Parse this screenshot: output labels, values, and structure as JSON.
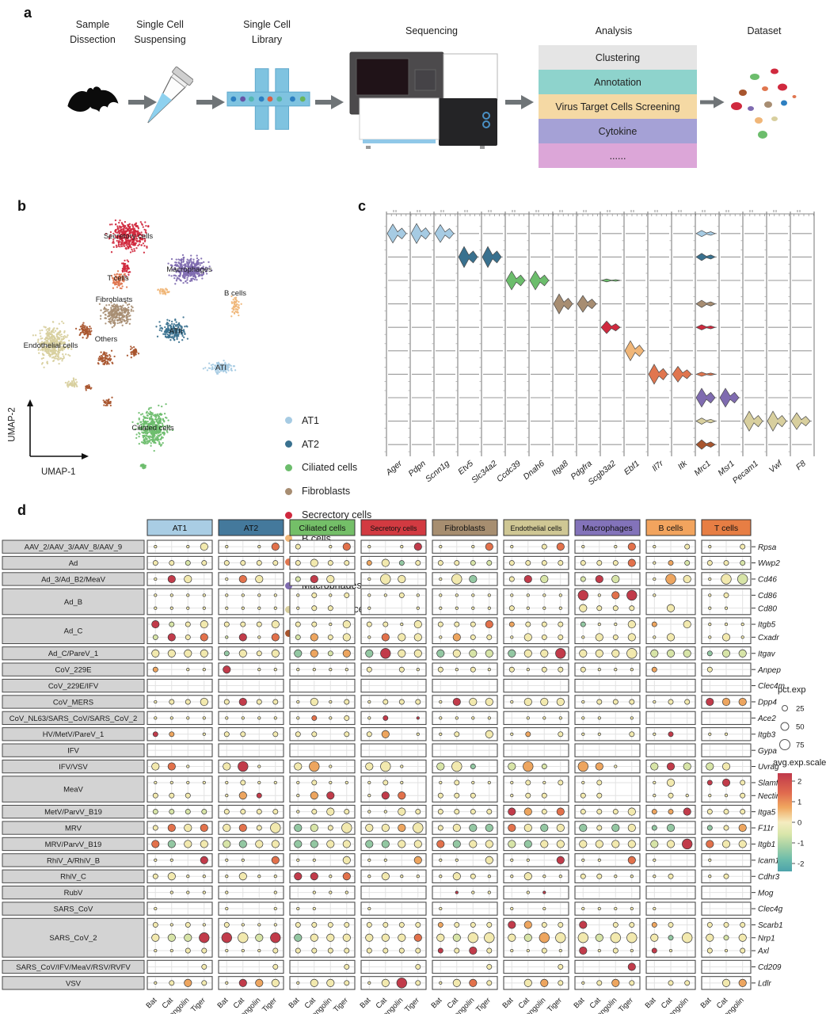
{
  "panel_a": {
    "label": "a",
    "steps": [
      {
        "title": "Sample\nDissection",
        "icon": "bat-icon"
      },
      {
        "title": "Single Cell\nSuspensing",
        "icon": "tube-icon"
      },
      {
        "title": "Single Cell\nLibrary",
        "icon": "chip-icon"
      },
      {
        "title": "Sequencing",
        "icon": "sequencer-icon"
      },
      {
        "title": "Analysis",
        "icon": "analysis-stack"
      },
      {
        "title": "Dataset",
        "icon": "dataset-umap-icon"
      }
    ],
    "analysis_items": [
      {
        "label": "Clustering",
        "color": "#e5e5e5"
      },
      {
        "label": "Annotation",
        "color": "#8ed3cc"
      },
      {
        "label": "Virus Target Cells Screening",
        "color": "#f5d9a4"
      },
      {
        "label": "Cytokine",
        "color": "#a5a1d6"
      },
      {
        "label": "......",
        "color": "#dca6d8"
      }
    ]
  },
  "chart_data": [
    {
      "panel_label": "b",
      "type": "scatter",
      "x_label": "UMAP-1",
      "y_label": "UMAP-2",
      "legend": [
        {
          "name": "AT1",
          "color": "#a6cbe3"
        },
        {
          "name": "AT2",
          "color": "#39718f"
        },
        {
          "name": "Ciliated cells",
          "color": "#6cbd6c"
        },
        {
          "name": "Fibroblasts",
          "color": "#a78d72"
        },
        {
          "name": "Secrectory cells",
          "color": "#d0293e"
        },
        {
          "name": "B cells",
          "color": "#f0b678"
        },
        {
          "name": "T cells",
          "color": "#e0764f"
        },
        {
          "name": "Macrophages",
          "color": "#7f6bb0"
        },
        {
          "name": "Endothelial cells",
          "color": "#d8cf9e"
        },
        {
          "name": "Others",
          "color": "#a8552e"
        }
      ],
      "clusters": [
        {
          "name": "Secretory cells",
          "color": "#d0293e",
          "label": "Secretory cells",
          "label_pos": [
            152,
            55
          ],
          "blobs": [
            [
              152,
              52,
              34,
              28
            ],
            [
              149,
              92,
              9,
              13
            ]
          ]
        },
        {
          "name": "Macrophages",
          "color": "#7f6bb0",
          "label": "Macrophages",
          "label_pos": [
            229,
            97
          ],
          "blobs": [
            [
              229,
              94,
              34,
              25
            ]
          ]
        },
        {
          "name": "T cells",
          "color": "#e0764f",
          "label": "T cells",
          "label_pos": [
            139,
            108
          ],
          "blobs": [
            [
              140,
              108,
              14,
              15
            ]
          ]
        },
        {
          "name": "B cells",
          "color": "#f0b678",
          "label": "B cells",
          "label_pos": [
            287,
            127
          ],
          "blobs": [
            [
              288,
              142,
              8,
              17
            ],
            [
              196,
              122,
              11,
              7
            ]
          ]
        },
        {
          "name": "Fibroblasts",
          "color": "#a78d72",
          "label": "Fibroblasts",
          "label_pos": [
            134,
            135
          ],
          "blobs": [
            [
              139,
              150,
              29,
              21
            ]
          ]
        },
        {
          "name": "Others",
          "color": "#a8552e",
          "label": "Others",
          "label_pos": [
            124,
            185
          ],
          "blobs": [
            [
              97,
              172,
              13,
              13
            ],
            [
              122,
              207,
              14,
              13
            ],
            [
              159,
              198,
              10,
              10
            ],
            [
              126,
              262,
              9,
              8
            ],
            [
              101,
              243,
              6,
              5
            ]
          ]
        },
        {
          "name": "ATII",
          "color": "#39718f",
          "label": "ATII",
          "label_pos": [
            212,
            175
          ],
          "blobs": [
            [
              209,
              172,
              25,
              19
            ]
          ]
        },
        {
          "name": "Endothelial cells",
          "color": "#d8cf9e",
          "label": "Endothelial cells",
          "label_pos": [
            54,
            193
          ],
          "blobs": [
            [
              57,
              188,
              29,
              33
            ],
            [
              82,
              238,
              11,
              9
            ]
          ]
        },
        {
          "name": "ATI",
          "color": "#a6cbe3",
          "label": "ATI",
          "label_pos": [
            269,
            221
          ],
          "blobs": [
            [
              269,
              218,
              25,
              12
            ]
          ]
        },
        {
          "name": "Ciliated cells",
          "color": "#6cbd6c",
          "label": "Ciliated cells",
          "label_pos": [
            183,
            297
          ],
          "blobs": [
            [
              183,
              294,
              29,
              35
            ],
            [
              171,
              342,
              7,
              5
            ]
          ]
        }
      ]
    },
    {
      "panel_label": "c",
      "type": "violin",
      "genes": [
        "Ager",
        "Pdpn",
        "Scnn1g",
        "Etv5",
        "Slc34a2",
        "Ccdc39",
        "Dnah6",
        "Itga8",
        "Pdgfra",
        "Scgb3a2",
        "Ebf1",
        "Il7r",
        "Itk",
        "Mrc1",
        "Msr1",
        "Pecam1",
        "Vwf",
        "F8"
      ],
      "rows": [
        {
          "cell_type": "AT1",
          "color": "#a6cbe3",
          "values": [
            0.9,
            0.95,
            0.85,
            0,
            0,
            0,
            0,
            0,
            0,
            0,
            0,
            0,
            0,
            0.3,
            0,
            0,
            0,
            0
          ]
        },
        {
          "cell_type": "AT2",
          "color": "#39718f",
          "values": [
            0,
            0,
            0,
            1,
            1,
            0,
            0,
            0,
            0,
            0,
            0,
            0,
            0,
            0.35,
            0,
            0,
            0,
            0
          ]
        },
        {
          "cell_type": "Ciliated cells",
          "color": "#6cbd6c",
          "values": [
            0,
            0,
            0,
            0,
            0,
            0.9,
            0.9,
            0,
            0,
            0.14,
            0,
            0,
            0,
            0,
            0,
            0,
            0,
            0
          ]
        },
        {
          "cell_type": "Fibroblasts",
          "color": "#a78d72",
          "values": [
            0,
            0,
            0,
            0,
            0,
            0,
            0,
            0.95,
            0.8,
            0,
            0,
            0,
            0,
            0.35,
            0,
            0,
            0,
            0
          ]
        },
        {
          "cell_type": "Secrectory cells",
          "color": "#d0293e",
          "values": [
            0,
            0,
            0,
            0,
            0,
            0,
            0,
            0,
            0,
            0.6,
            0,
            0,
            0,
            0.25,
            0,
            0,
            0,
            0
          ]
        },
        {
          "cell_type": "B cells",
          "color": "#f0b678",
          "values": [
            0,
            0,
            0,
            0,
            0,
            0,
            0,
            0,
            0,
            0,
            0.95,
            0,
            0,
            0,
            0,
            0,
            0,
            0
          ]
        },
        {
          "cell_type": "T cells",
          "color": "#e0764f",
          "values": [
            0,
            0,
            0,
            0,
            0,
            0,
            0,
            0,
            0,
            0,
            0,
            0.95,
            0.75,
            0.2,
            0,
            0,
            0,
            0
          ]
        },
        {
          "cell_type": "Macrophages",
          "color": "#7f6bb0",
          "values": [
            0,
            0,
            0,
            0,
            0,
            0,
            0,
            0,
            0,
            0,
            0,
            0,
            0,
            0.9,
            0.9,
            0,
            0,
            0
          ]
        },
        {
          "cell_type": "Endothelial cells",
          "color": "#d8cf9e",
          "values": [
            0,
            0,
            0,
            0,
            0,
            0,
            0,
            0,
            0,
            0,
            0,
            0,
            0,
            0.3,
            0,
            0.95,
            0.95,
            0.8
          ]
        },
        {
          "cell_type": "Others",
          "color": "#a8552e",
          "values": [
            0,
            0,
            0,
            0,
            0,
            0,
            0,
            0,
            0,
            0,
            0,
            0,
            0,
            0.45,
            0,
            0,
            0,
            0
          ]
        }
      ]
    },
    {
      "panel_label": "d",
      "type": "dotplot",
      "cell_types": [
        {
          "name": "AT1",
          "color": "#a9cde4",
          "species": [
            "Bat",
            "Cat",
            "Pangolin",
            "Tiger"
          ]
        },
        {
          "name": "AT2",
          "color": "#44799c",
          "species": [
            "Bat",
            "Cat",
            "Pangolin",
            "Tiger"
          ]
        },
        {
          "name": "Ciliated cells",
          "color": "#74bf68",
          "species": [
            "Bat",
            "Cat",
            "Pangolin",
            "Tiger"
          ]
        },
        {
          "name": "Secretory cells",
          "color": "#d23a41",
          "species": [
            "Bat",
            "Cat",
            "Pangolin",
            "Tiger"
          ]
        },
        {
          "name": "Fibroblasts",
          "color": "#a78e70",
          "species": [
            "Bat",
            "Cat",
            "Pangolin",
            "Tiger"
          ]
        },
        {
          "name": "Endothelial cells",
          "color": "#cfc794",
          "species": [
            "Bat",
            "Cat",
            "Pangolin",
            "Tiger"
          ]
        },
        {
          "name": "Macrophages",
          "color": "#8373ba",
          "species": [
            "Bat",
            "Cat",
            "Pangolin",
            "Tiger"
          ]
        },
        {
          "name": "B cells",
          "color": "#f2a45e",
          "species": [
            "Bat",
            "Cat",
            "Pangolin"
          ]
        },
        {
          "name": "T cells",
          "color": "#e77e44",
          "species": [
            "Bat",
            "Cat",
            "Pangolin"
          ]
        }
      ],
      "dot_colors": {
        "r": "#c13b4a",
        "o": "#e2714b",
        "a": "#eda55f",
        "y": "#f2e9ae",
        "g": "#d7e4a7",
        "t": "#93c7a2"
      },
      "legend_pct": {
        "title": "pct.exp",
        "sizes": [
          25,
          50,
          75
        ]
      },
      "legend_color": {
        "title": "avg.exp.scaled",
        "ticks": [
          2,
          1,
          0,
          -1,
          -2
        ]
      },
      "rows": [
        {
          "virus": "AAV_2/AAV_3/AAV_8/AAV_9",
          "genes": [
            {
              "name": "Rpsa",
              "dots": "y1 . y1 y3|y1 . y1 o3|y2 . y1 o3|y1 . y1 r3|y1 . y1 o3|y1 . y2 o3|y1 . y1 o3|y1 . y2|y1 . y2"
            }
          ]
        },
        {
          "virus": "Ad",
          "genes": [
            {
              "name": "Wwp2",
              "dots": "y2 y2 g2 y2|y2 y2 y2 y2|y2 y3 y2 y2|a2 y3 t2 y2|y2 y2 g2 g2|y2 y2 y2 y2|y2 y2 y2 o3|y1 a2 g2|y2 y2 g2"
            }
          ]
        },
        {
          "virus": "Ad_3/Ad_B2/MeaV",
          "genes": [
            {
              "name": "Cd46",
              "dots": "y1 r3 y3 .|y1 o3 y3 .|g2 r3 y3 .|y1 y4 y3 .|y1 y4 t3 .|y2 r3 g3 .|g2 r3 g3 .|y1 a4 y3|y1 y4 g4"
            }
          ]
        },
        {
          "virus": "Ad_B",
          "genes": [
            {
              "name": "Cd86",
              "dots": "y1 y1 y1 y1|y1 y1 y1 y1|y1 y2 y1 y2|y1 y1 y2 y1|y1 y1 y1 y1|y1 y1 y1 y1|r4 y1 o3 r4|y1 . .|y1 y2 ."
            },
            {
              "name": "Cd80",
              "dots": "y1 y1 y1 y1|y1 y1 y1 y1|y1 y2 y2 .|y1 . . y1|y1 y1 y1 y1|y2 y1 y1 y1|y3 y2 y2 y2|. y3 .|y1 y1 ."
            }
          ]
        },
        {
          "virus": "Ad_C",
          "genes": [
            {
              "name": "Itgb5",
              "dots": "r3 g2 y2 y3|y2 y2 y2 y3|y2 y2 y1 y3|y2 y2 y1 y3|y2 y2 y2 o3|a2 y2 y2 y2|t2 y1 y1 y3|a2 . y3|y1 y1 y1"
            },
            {
              "name": "Cxadr",
              "dots": "g2 r3 y2 o3|g1 r3 y1 o3|g2 a3 y2 y3|y1 o3 y3 y3|y1 a3 y2 y2|y1 y3 y2 y2|y1 y3 y2 y3|y1 y3 .|y1 y3 y1"
            }
          ]
        },
        {
          "virus": "Ad_C/PareV_1",
          "genes": [
            {
              "name": "Itgav",
              "dots": "y3 y3 y3 y3|t2 y3 y2 y3|t3 a3 g2 a3|t3 r4 y3 y3|t3 y3 g3 g3|t3 y3 y3 r4|y3 y3 y3 y4|g3 g3 g3|t2 g3 g3"
            }
          ]
        },
        {
          "virus": "CoV_229E",
          "genes": [
            {
              "name": "Anpep",
              "dots": "a2 . y1 y1|r3 . y1 y1|y1 y1 y1 y1|y2 . y2 y1|y2 y1 y2 y1|y2 y1 y2 y2|y2 y1 y1 y1|a2 . .|y2 . ."
            }
          ]
        },
        {
          "virus": "CoV_229E/IFV",
          "genes": [
            {
              "name": "Clec4m",
              "dots": ""
            }
          ]
        },
        {
          "virus": "CoV_MERS",
          "genes": [
            {
              "name": "Dpp4",
              "dots": "y1 y2 y2 y3|y2 r3 y2 y2|y1 y3 y1 y2|y1 y2 y2 y2|y1 r3 y3 y3|y1 y3 y3 y3|y1 y2 y2 y2|y1 y2 y2|r3 a3 a3"
            }
          ]
        },
        {
          "virus": "CoV_NL63/SARS_CoV/SARS_CoV_2",
          "genes": [
            {
              "name": "Ace2",
              "dots": "y1 y1 y1 y1|y1 y1 y1 y1|y1 o2 y1 y2|y1 r2 . r1|y1 y1 y1 y1|. y1 y1 y1|y1 y1 . y1|. . .|. . ."
            }
          ]
        },
        {
          "virus": "HV/MetV/PareV_1",
          "genes": [
            {
              "name": "Itgb3",
              "dots": "r2 a2 . y1|y2 y2 . y2|y2 y2 . y2|y2 a3 . y1|y1 y2 . y3|y1 a2 . y2|y1 y1 . y2|y1 r2 .|y1 y1 ."
            }
          ]
        },
        {
          "virus": "IFV",
          "genes": [
            {
              "name": "Gypa",
              "dots": ""
            }
          ]
        },
        {
          "virus": "IFV/VSV",
          "genes": [
            {
              "name": "Uvrag",
              "dots": "y3 o3 y1 .|y3 r4 y1 .|y3 a4 y1 .|y3 y4 y1 .|g3 y4 t2 .|g3 a4 g2 .|a4 a3 y1 .|g3 r3 g3|g3 y3 ."
            }
          ]
        },
        {
          "virus": "MeaV",
          "genes": [
            {
              "name": "Slamf1",
              "dots": "y1 y1 y1 y1|y1 y2 y1 y1|y1 y2 y1 y1|y1 y2 y1 .|y1 y2 y1 y1|y1 y2 y1 y2|y1 y2 . .|y1 y3 .|r2 r3 y2"
            },
            {
              "name": "Nectin4",
              "dots": "y2 y2 y2 .|y1 a3 r2 .|y1 a3 r3 .|y1 r3 o3 .|y2 y2 y2 .|y1 y2 y2 .|y2 y2 . .|y1 y2 y1|y1 y1 y2"
            }
          ]
        },
        {
          "virus": "MetV/ParvV_B19",
          "genes": [
            {
              "name": "Itga5",
              "dots": "g2 g2 g2 g2|y2 y2 y2 y2|y1 y2 y3 y2|y1 y1 y3 y2|y2 y2 y2 y2|r3 a3 y2 o3|y2 y2 y2 y3|a2 a2 r3|y2 y2 y2"
            }
          ]
        },
        {
          "virus": "MRV",
          "genes": [
            {
              "name": "F11r",
              "dots": "y2 o3 y3 o3|y3 o3 y2 y4|t3 g3 y2 y4|y3 y3 a3 y4|y2 y3 t3 t3|o3 y3 t3 y3|t3 y2 t3 y3|t2 t3 .|t2 y2 a3"
            }
          ]
        },
        {
          "virus": "MRV/ParvV_B19",
          "genes": [
            {
              "name": "Itgb1",
              "dots": "o3 t3 y3 y3|g3 t3 y3 y3|t3 t3 y3 y3|t3 t3 y3 y3|o3 t3 y3 y3|g3 t3 y3 y3|y3 y3 y3 y3|g3 y3 r4|o3 y3 y3"
            }
          ]
        },
        {
          "virus": "RhiV_A/RhiV_B",
          "genes": [
            {
              "name": "Icam1",
              "dots": "y1 y1 . r3|y1 y1 . o3|y1 y1 . y3|y1 y1 . a3|y1 y1 . y3|y1 y1 . r3|y1 y1 . o3|y1 . .|y1 . ."
            }
          ]
        },
        {
          "virus": "RhiV_C",
          "genes": [
            {
              "name": "Cdhr3",
              "dots": "y2 y3 y1 y1|y1 y3 y1 y1|r3 r3 y1 o3|y1 y3 y1 y1|y1 y3 y2 y1|y1 y3 y1 y1|y2 y2 y1 y1|y1 y2 .|y1 y2 ."
            }
          ]
        },
        {
          "virus": "RubV",
          "genes": [
            {
              "name": "Mog",
              "dots": ". y1 y1 y1|y1 . . y1|. y1 y1 y1|. . . .|. r1 y1 y1|. y1 r1 .|. . . .|. . .|. . ."
            }
          ]
        },
        {
          "virus": "SARS_CoV",
          "genes": [
            {
              "name": "Clec4g",
              "dots": "y1 . . .|y1 . . y1|y1 y1 . .|y1 . . .|y1 . . .|y1 . y1 .|y1 y1 y1 y1|y1 . .|. . ."
            }
          ]
        },
        {
          "virus": "SARS_CoV_2",
          "genes": [
            {
              "name": "Scarb1",
              "dots": "y2 y1 y2 y1|y2 y1 y1 y1|y2 y2 y2 y2|y2 y2 y2 y2|a2 y2 y2 y2|r3 a3 y2 y2|r3 . y2 y2|a2 y2 .|y2 y2 y2"
            },
            {
              "name": "Nrp1",
              "dots": "y3 g3 g3 r4|r4 y4 g3 r4|t3 y3 y3 y3|y3 y3 y3 o3|y3 g3 y4 y4|y3 g3 a4 y4|y4 g3 y4 y4|y3 t2 y4|y3 g2 y3"
            },
            {
              "name": "Axl",
              "dots": "y1 y1 y2 y2|y1 y1 y1 y2|y2 y2 y2 y2|y2 y2 y2 y2|r2 y2 r3 y2|y1 y1 y2 y1|r3 y1 y2 y1|r2 y1 .|y2 y1 y2"
            }
          ]
        },
        {
          "virus": "SARS_CoV/IFV/MeaV/RSV/RVFV",
          "genes": [
            {
              "name": "Cd209",
              "dots": ". . . y2|. . . y2|. . . y2|. . . y2|. . . y2|. . . y2|. . . r3|. . .|. . ."
            }
          ]
        },
        {
          "virus": "VSV",
          "genes": [
            {
              "name": "Ldlr",
              "dots": "y1 y2 a3 y2|y1 r3 a3 y3|y1 y3 y3 y2|y1 y3 r4 y2|y1 y3 o3 y2|. y3 a3 y2|y1 y2 a3 y2|. y2 y2|. y3 a3"
            }
          ]
        }
      ]
    }
  ]
}
